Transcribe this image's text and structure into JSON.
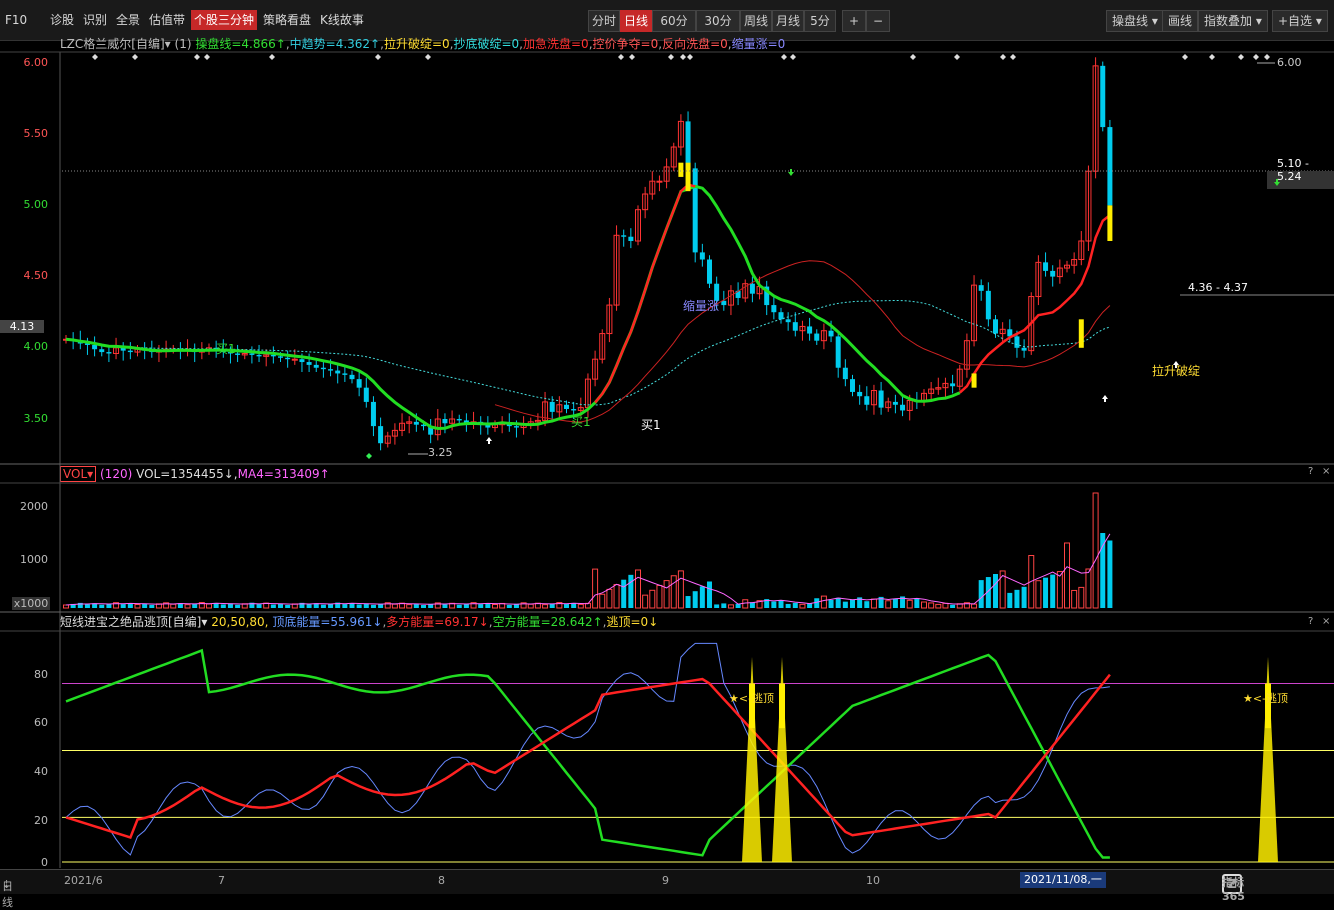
{
  "topbar": {
    "tabs": [
      "F10",
      "诊股",
      "识别",
      "全景",
      "估值带",
      "个股三分钟",
      "策略看盘",
      "K线故事"
    ],
    "active_tab": "个股三分钟",
    "periods": [
      "分时",
      "日线",
      "60分",
      "30分",
      "周线",
      "月线",
      "5分"
    ],
    "active_period": "日线",
    "zoom_in": "+",
    "zoom_out": "−",
    "right_buttons": [
      "操盘线",
      "画线",
      "指数叠加",
      "+自选"
    ]
  },
  "main": {
    "stock": "LZC格兰威尔[自编]",
    "param": "(1)",
    "indicators": [
      {
        "text": "操盘线=4.866↑",
        "color": "#33dd33"
      },
      {
        "text": "中趋势=4.362↑",
        "color": "#33ccdd"
      },
      {
        "text": "拉升破绽=0",
        "color": "#ffdd33"
      },
      {
        "text": "抄底破绽=0",
        "color": "#33dddd"
      },
      {
        "text": "加急洗盘=0",
        "color": "#ff3333"
      },
      {
        "text": "控价争夺=0",
        "color": "#ff5555"
      },
      {
        "text": "反向洗盘=0",
        "color": "#ff5555"
      },
      {
        "text": "缩量涨=0",
        "color": "#8888ff"
      }
    ],
    "yaxis": [
      "6.00",
      "5.50",
      "5.00",
      "4.50",
      "4.00",
      "3.50"
    ],
    "current_price": "4.13",
    "annotations": {
      "low": "3.25",
      "high": "6.00",
      "range_upper": "5.10 - 5.24",
      "range_lower": "4.36 - 4.37",
      "buy1": "买1",
      "buy1b": "买1",
      "buy1c": "买1",
      "shrink": "缩量涨",
      "pullup": "拉升破绽"
    }
  },
  "volume": {
    "name": "VOL",
    "param": "(120)",
    "vol": "VOL=1354455↓",
    "ma": "MA4=313409↑",
    "yaxis": [
      "2000",
      "1000"
    ],
    "unit": "x1000"
  },
  "osc": {
    "name": "短线进宝之绝品逃顶[自编]",
    "params": "20,50,80,",
    "items": [
      {
        "text": "顶底能量=55.961↓",
        "color": "#6699ff"
      },
      {
        "text": "多方能量=69.17↓",
        "color": "#ff3333"
      },
      {
        "text": "空方能量=28.642↑",
        "color": "#33dd33"
      },
      {
        "text": "逃顶=0↓",
        "color": "#ffdd33"
      }
    ],
    "yaxis": [
      "80",
      "60",
      "40",
      "20",
      "0"
    ],
    "escape_label": "★<-逃顶"
  },
  "footer": {
    "label": "日线",
    "dates": [
      "2021/6",
      "7",
      "8",
      "9",
      "10",
      "2021/11/08,一"
    ],
    "watermark": "指标365"
  },
  "colors": {
    "up": "#ff3333",
    "down": "#00ccee",
    "line_green": "#22dd22",
    "line_red": "#ff2222",
    "accent": "#c62828"
  }
}
